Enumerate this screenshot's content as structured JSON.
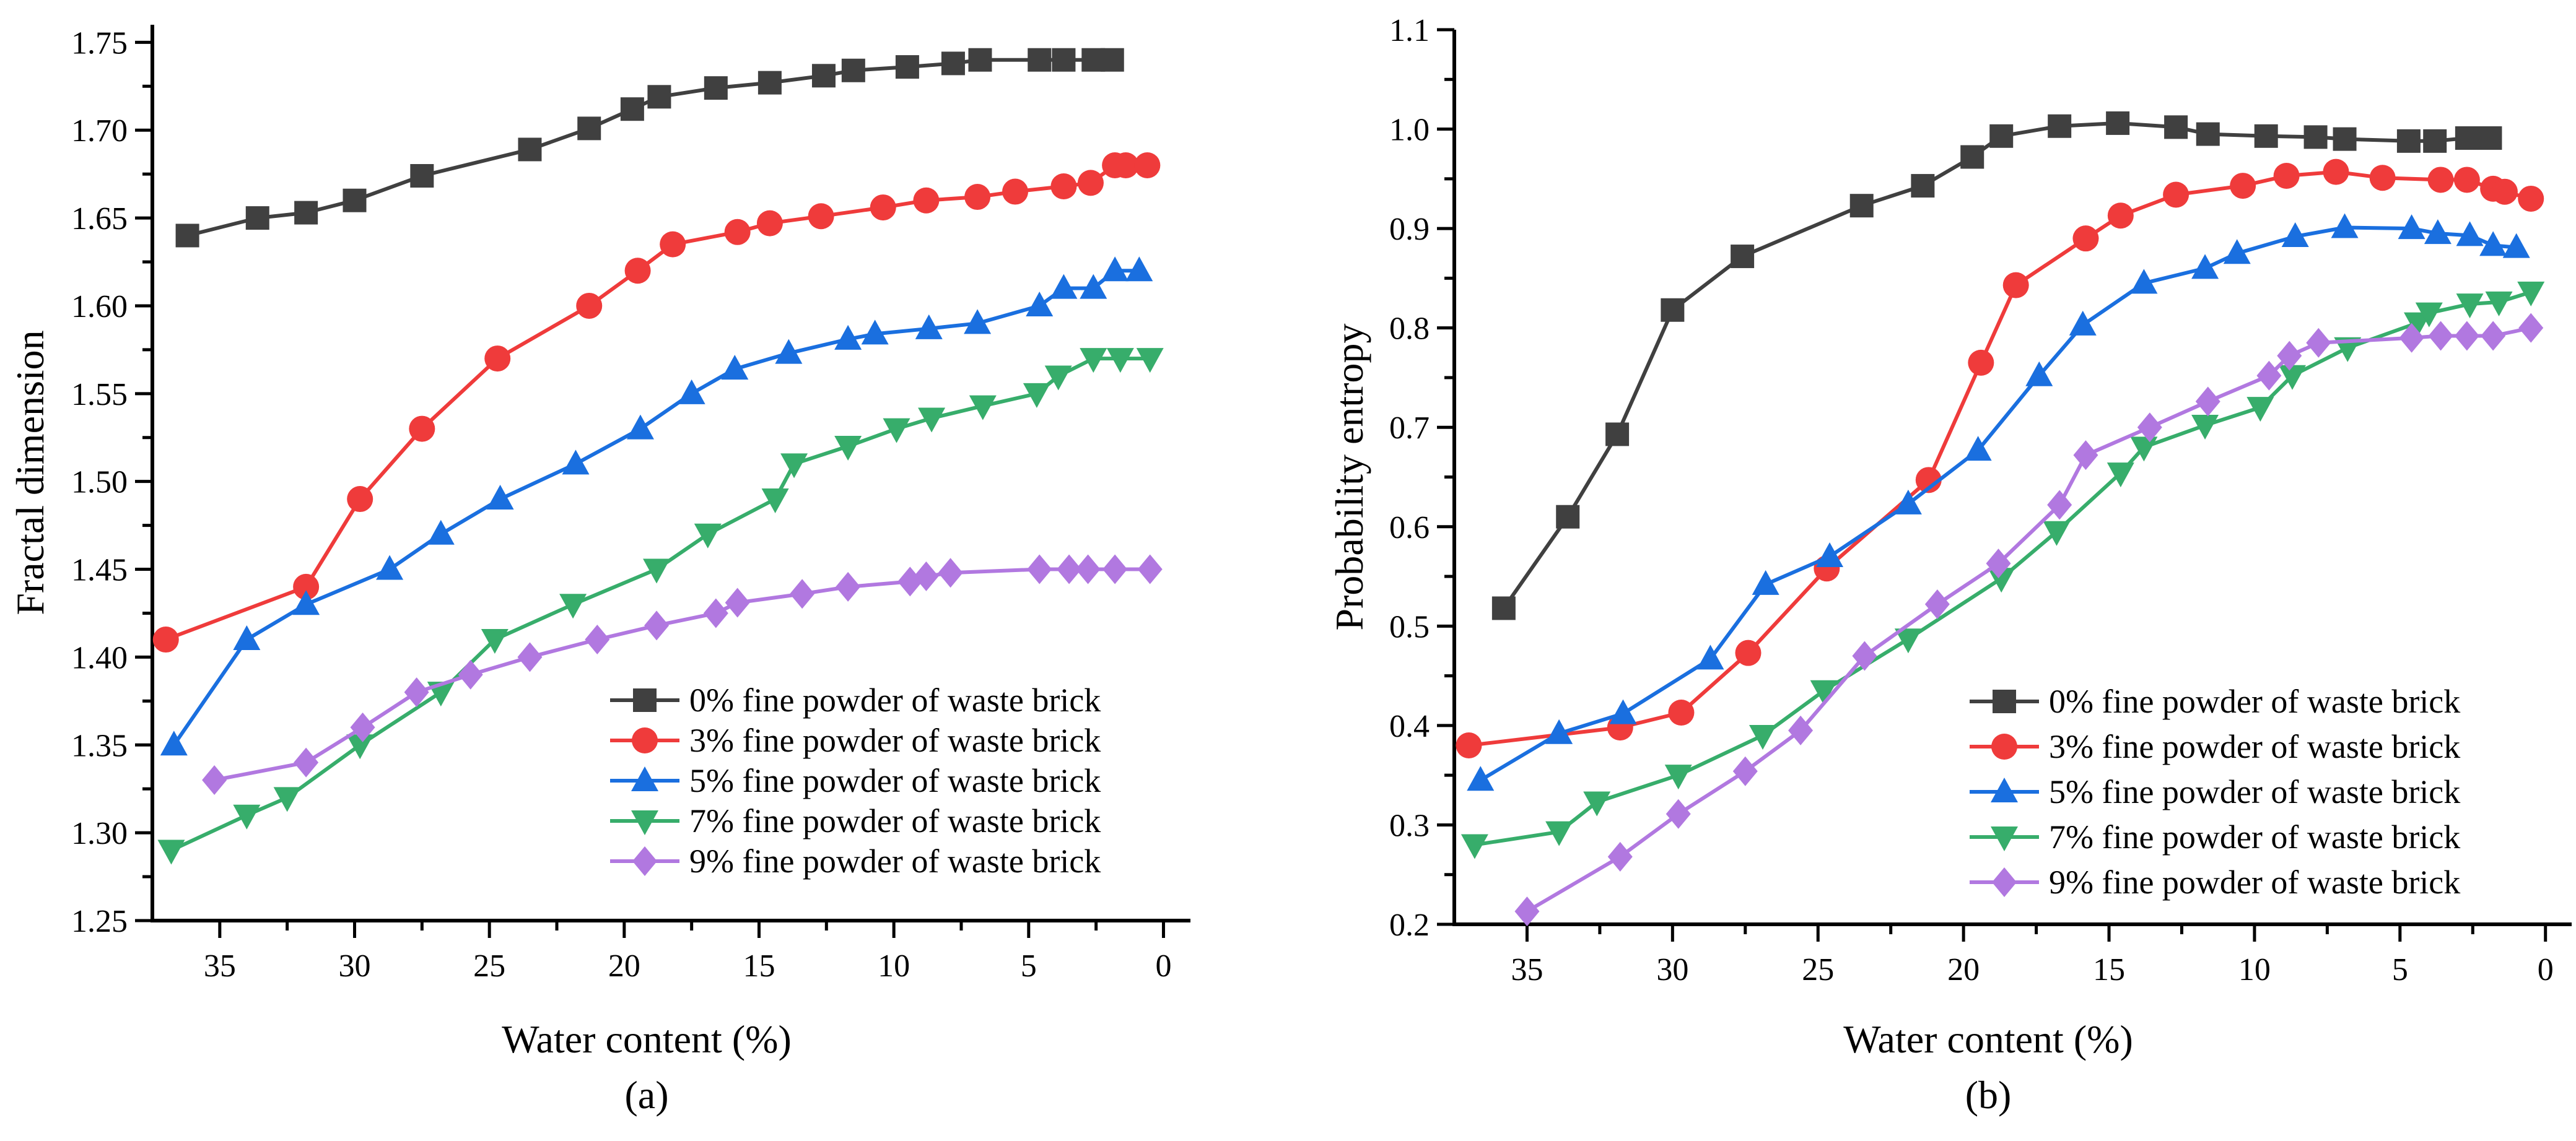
{
  "chart_data": [
    {
      "type": "line",
      "panel_label": "(a)",
      "panel_label_letter": "a",
      "xlabel": "Water content (%)",
      "ylabel": "Fractal dimension",
      "xlim": [
        37.5,
        -1.0
      ],
      "ylim": [
        1.25,
        1.76
      ],
      "xticks": [
        35,
        30,
        25,
        20,
        15,
        10,
        5,
        0
      ],
      "yticks": [
        1.25,
        1.3,
        1.35,
        1.4,
        1.45,
        1.5,
        1.55,
        1.6,
        1.65,
        1.7,
        1.75
      ],
      "ytick_decimals": 2,
      "grid": false,
      "legend_position": "bottom-right",
      "series": [
        {
          "name": "0% fine powder of waste brick",
          "color": "#404040",
          "marker": "square",
          "x": [
            36.2,
            33.6,
            31.8,
            30.0,
            27.5,
            23.5,
            21.3,
            19.7,
            18.7,
            16.6,
            14.6,
            12.6,
            11.5,
            9.5,
            7.8,
            6.8,
            4.6,
            3.7,
            2.6,
            1.9
          ],
          "y": [
            1.64,
            1.65,
            1.653,
            1.66,
            1.674,
            1.689,
            1.701,
            1.712,
            1.719,
            1.724,
            1.727,
            1.731,
            1.734,
            1.736,
            1.738,
            1.74,
            1.74,
            1.74,
            1.74,
            1.74
          ]
        },
        {
          "name": "3% fine powder of waste brick",
          "color": "#ef3b3b",
          "marker": "circle",
          "x": [
            37.0,
            31.8,
            29.8,
            27.5,
            24.7,
            21.3,
            19.5,
            18.2,
            15.8,
            14.6,
            12.7,
            10.4,
            8.8,
            6.9,
            5.5,
            3.7,
            2.7,
            1.8,
            1.4,
            0.6
          ],
          "y": [
            1.41,
            1.44,
            1.49,
            1.53,
            1.57,
            1.6,
            1.62,
            1.635,
            1.642,
            1.647,
            1.651,
            1.656,
            1.66,
            1.662,
            1.665,
            1.668,
            1.67,
            1.68,
            1.68,
            1.68
          ]
        },
        {
          "name": "5% fine powder of waste brick",
          "color": "#1a6fdf",
          "marker": "triangle-up",
          "x": [
            36.7,
            34.0,
            31.8,
            28.7,
            26.8,
            24.6,
            21.8,
            19.4,
            17.5,
            15.9,
            13.9,
            11.7,
            10.7,
            8.7,
            6.9,
            4.6,
            3.7,
            2.6,
            1.8,
            0.9
          ],
          "y": [
            1.35,
            1.41,
            1.43,
            1.45,
            1.47,
            1.49,
            1.51,
            1.53,
            1.55,
            1.564,
            1.573,
            1.581,
            1.584,
            1.587,
            1.59,
            1.6,
            1.61,
            1.61,
            1.62,
            1.62
          ]
        },
        {
          "name": "7% fine powder of waste brick",
          "color": "#37ad6b",
          "marker": "triangle-down",
          "x": [
            36.8,
            34.0,
            32.5,
            29.8,
            26.8,
            24.8,
            21.9,
            18.8,
            16.9,
            14.4,
            13.7,
            11.7,
            9.9,
            8.6,
            6.7,
            4.7,
            3.9,
            2.6,
            1.6,
            0.5
          ],
          "y": [
            1.29,
            1.31,
            1.32,
            1.35,
            1.38,
            1.41,
            1.43,
            1.45,
            1.47,
            1.49,
            1.51,
            1.52,
            1.53,
            1.536,
            1.543,
            1.55,
            1.56,
            1.57,
            1.57,
            1.57
          ]
        },
        {
          "name": "9% fine powder of waste brick",
          "color": "#b178e0",
          "marker": "diamond",
          "x": [
            35.2,
            31.8,
            29.7,
            27.7,
            25.7,
            23.5,
            21.0,
            18.8,
            16.6,
            15.8,
            13.4,
            11.7,
            9.4,
            8.8,
            7.9,
            4.6,
            3.5,
            2.8,
            1.8,
            0.5
          ],
          "y": [
            1.33,
            1.34,
            1.36,
            1.38,
            1.39,
            1.4,
            1.41,
            1.418,
            1.425,
            1.431,
            1.436,
            1.44,
            1.443,
            1.446,
            1.448,
            1.45,
            1.45,
            1.45,
            1.45,
            1.45
          ]
        }
      ]
    },
    {
      "type": "line",
      "panel_label": "(b)",
      "panel_label_letter": "b",
      "xlabel": "Water content (%)",
      "ylabel": "Probability entropy",
      "xlim": [
        37.5,
        -0.9
      ],
      "ylim": [
        0.2,
        1.1
      ],
      "xticks": [
        35,
        30,
        25,
        20,
        15,
        10,
        5,
        0
      ],
      "yticks": [
        0.2,
        0.3,
        0.4,
        0.5,
        0.6,
        0.7,
        0.8,
        0.9,
        1.0,
        1.1
      ],
      "ytick_decimals": 1,
      "grid": false,
      "legend_position": "bottom-right",
      "series": [
        {
          "name": "0% fine powder of waste brick",
          "color": "#404040",
          "marker": "square",
          "x": [
            35.8,
            33.6,
            31.9,
            30.0,
            27.6,
            23.5,
            21.4,
            19.7,
            18.7,
            16.7,
            14.7,
            12.7,
            11.6,
            9.6,
            7.9,
            6.9,
            4.7,
            3.8,
            2.7,
            1.9
          ],
          "y": [
            0.518,
            0.61,
            0.693,
            0.818,
            0.872,
            0.923,
            0.943,
            0.972,
            0.993,
            1.003,
            1.006,
            1.002,
            0.995,
            0.993,
            0.992,
            0.99,
            0.988,
            0.988,
            0.991,
            0.991
          ]
        },
        {
          "name": "3% fine powder of waste brick",
          "color": "#ef3b3b",
          "marker": "circle",
          "x": [
            37.0,
            31.8,
            29.7,
            27.4,
            24.7,
            21.2,
            19.4,
            18.2,
            15.8,
            14.6,
            12.7,
            10.4,
            8.9,
            7.2,
            5.6,
            3.6,
            2.7,
            1.8,
            1.4,
            0.5
          ],
          "y": [
            0.38,
            0.398,
            0.413,
            0.473,
            0.558,
            0.647,
            0.765,
            0.843,
            0.89,
            0.913,
            0.934,
            0.943,
            0.953,
            0.957,
            0.951,
            0.949,
            0.949,
            0.94,
            0.937,
            0.93
          ]
        },
        {
          "name": "5% fine powder of waste brick",
          "color": "#1a6fdf",
          "marker": "triangle-up",
          "x": [
            36.6,
            33.9,
            31.7,
            28.7,
            26.8,
            24.6,
            21.9,
            19.5,
            17.4,
            15.9,
            13.8,
            11.7,
            10.6,
            8.6,
            6.9,
            4.6,
            3.7,
            2.6,
            1.8,
            1.0
          ],
          "y": [
            0.345,
            0.392,
            0.412,
            0.467,
            0.542,
            0.57,
            0.623,
            0.677,
            0.752,
            0.803,
            0.845,
            0.86,
            0.875,
            0.892,
            0.901,
            0.9,
            0.895,
            0.893,
            0.883,
            0.881
          ]
        },
        {
          "name": "7% fine powder of waste brick",
          "color": "#37ad6b",
          "marker": "triangle-down",
          "x": [
            36.8,
            33.9,
            32.6,
            29.8,
            26.9,
            24.8,
            21.9,
            18.7,
            16.8,
            14.6,
            13.8,
            11.7,
            9.8,
            8.7,
            6.8,
            4.4,
            4.0,
            2.6,
            1.6,
            0.5
          ],
          "y": [
            0.28,
            0.293,
            0.323,
            0.35,
            0.39,
            0.435,
            0.487,
            0.548,
            0.595,
            0.654,
            0.68,
            0.702,
            0.72,
            0.752,
            0.78,
            0.805,
            0.815,
            0.824,
            0.826,
            0.836
          ]
        },
        {
          "name": "9% fine powder of waste brick",
          "color": "#b178e0",
          "marker": "diamond",
          "x": [
            35.0,
            31.8,
            29.8,
            27.5,
            25.6,
            23.4,
            20.9,
            18.8,
            16.7,
            15.8,
            13.6,
            11.6,
            9.5,
            8.8,
            7.8,
            4.6,
            3.6,
            2.7,
            1.8,
            0.5
          ],
          "y": [
            0.213,
            0.268,
            0.311,
            0.354,
            0.395,
            0.47,
            0.522,
            0.563,
            0.622,
            0.672,
            0.7,
            0.726,
            0.752,
            0.772,
            0.785,
            0.79,
            0.792,
            0.792,
            0.792,
            0.8
          ]
        }
      ]
    }
  ]
}
